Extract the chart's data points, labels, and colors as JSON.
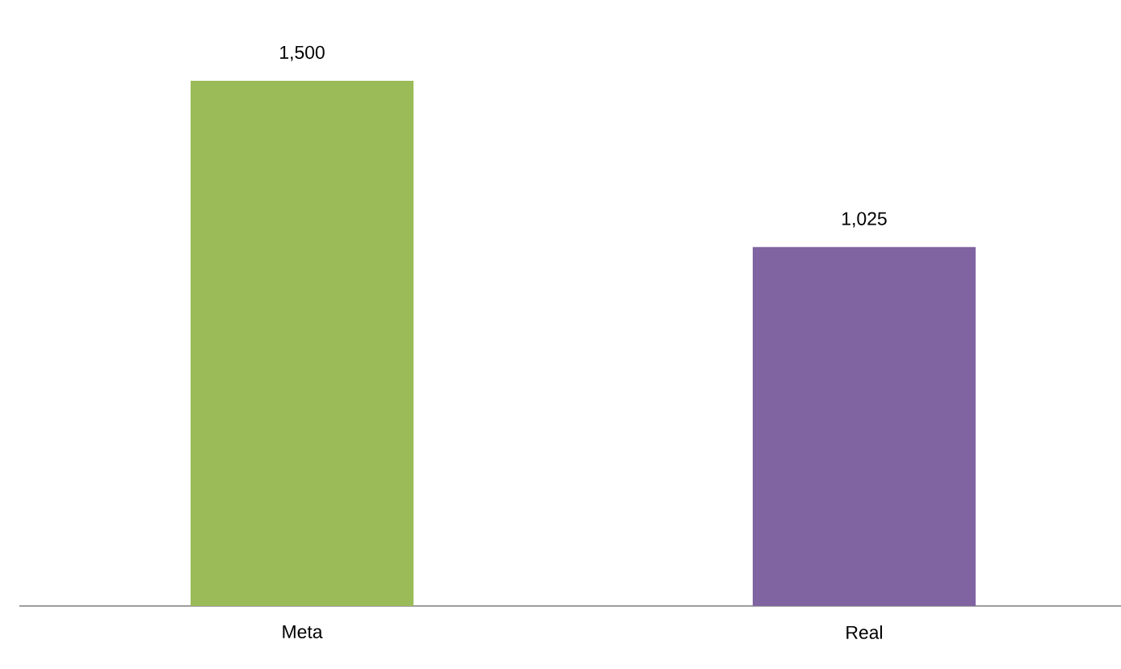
{
  "chart_data": {
    "type": "bar",
    "categories": [
      "Meta",
      "Real"
    ],
    "values": [
      1500,
      1025
    ],
    "colors": [
      "#9bbb59",
      "#8064a2"
    ],
    "value_labels": [
      "1,500",
      "1,025"
    ]
  }
}
